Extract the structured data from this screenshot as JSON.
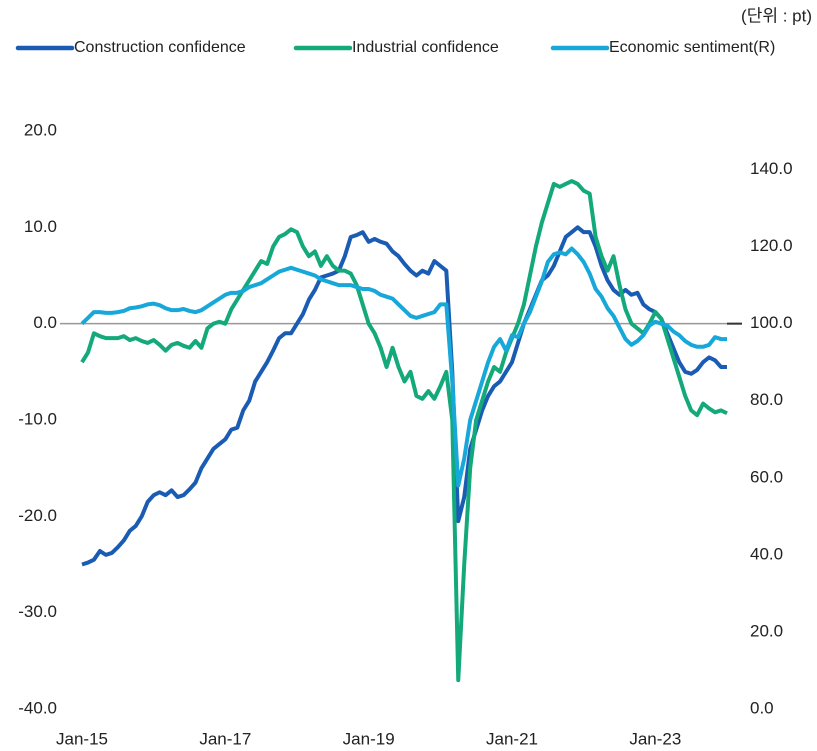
{
  "chart_data": {
    "type": "line",
    "unit_label": "(단위 : pt)",
    "categories": [
      "Jan-15",
      null,
      null,
      null,
      null,
      null,
      null,
      null,
      null,
      null,
      null,
      null,
      null,
      null,
      null,
      null,
      null,
      null,
      null,
      null,
      null,
      null,
      null,
      null,
      "Jan-17",
      null,
      null,
      null,
      null,
      null,
      null,
      null,
      null,
      null,
      null,
      null,
      null,
      null,
      null,
      null,
      null,
      null,
      null,
      null,
      null,
      null,
      null,
      null,
      "Jan-19",
      null,
      null,
      null,
      null,
      null,
      null,
      null,
      null,
      null,
      null,
      null,
      null,
      null,
      null,
      null,
      null,
      null,
      null,
      null,
      null,
      null,
      null,
      null,
      "Jan-21",
      null,
      null,
      null,
      null,
      null,
      null,
      null,
      null,
      null,
      null,
      null,
      null,
      null,
      null,
      null,
      null,
      null,
      null,
      null,
      null,
      null,
      null,
      null,
      "Jan-23",
      null,
      null,
      null,
      null,
      null,
      null,
      null,
      null,
      null,
      null,
      null,
      null
    ],
    "series": [
      {
        "name": "Construction confidence",
        "color": "#1a5cb4",
        "values": [
          -25,
          -24.8,
          -24.5,
          -23.6,
          -24,
          -23.8,
          -23.2,
          -22.5,
          -21.5,
          -21,
          -20,
          -18.5,
          -17.8,
          -17.5,
          -17.8,
          -17.3,
          -18,
          -17.8,
          -17.2,
          -16.5,
          -15,
          -14,
          -13,
          -12.5,
          -12,
          -11,
          -10.8,
          -9,
          -8,
          -6,
          -5,
          -4,
          -2.8,
          -1.5,
          -1,
          -1,
          0,
          1,
          2.5,
          3.5,
          4.8,
          5,
          5.2,
          5.5,
          7,
          9,
          9.2,
          9.5,
          8.5,
          8.8,
          8.5,
          8.3,
          7.5,
          7,
          6.2,
          5.5,
          5,
          5.5,
          5.2,
          6.5,
          6,
          5.5,
          -5,
          -20.5,
          -18,
          -13,
          -11,
          -9,
          -7.5,
          -6.5,
          -6,
          -5,
          -4,
          -2,
          0,
          1.5,
          3,
          4.5,
          5,
          6,
          7.5,
          9,
          9.5,
          10,
          9.5,
          9.5,
          8,
          6,
          4.5,
          3.5,
          3,
          3.5,
          3,
          3.2,
          2,
          1.5,
          1.2,
          0.5,
          -1,
          -2.5,
          -4,
          -5,
          -5.2,
          -4.8,
          -4,
          -3.5,
          -3.8,
          -4.5,
          -4.5
        ]
      },
      {
        "name": "Industrial confidence",
        "color": "#13a97a",
        "values": [
          -4,
          -3,
          -1,
          -1.3,
          -1.5,
          -1.5,
          -1.5,
          -1.3,
          -1.7,
          -1.5,
          -1.8,
          -2,
          -1.7,
          -2.2,
          -2.8,
          -2.2,
          -2,
          -2.3,
          -2.5,
          -1.8,
          -2.5,
          -0.5,
          0,
          0.2,
          0,
          1.5,
          2.5,
          3.5,
          4.5,
          5.5,
          6.5,
          6.2,
          8,
          9,
          9.3,
          9.8,
          9.5,
          8,
          7,
          7.5,
          6,
          7,
          6,
          5.5,
          5.5,
          5.2,
          4,
          2,
          0,
          -1,
          -2.5,
          -4.5,
          -2.5,
          -4.5,
          -6,
          -5,
          -7.5,
          -7.8,
          -7,
          -7.8,
          -6.5,
          -5,
          -10,
          -37,
          -25,
          -15,
          -10,
          -8,
          -6,
          -4.5,
          -5,
          -3,
          -1.5,
          0,
          2,
          5,
          8,
          10.5,
          12.5,
          14.5,
          14.2,
          14.5,
          14.8,
          14.5,
          13.8,
          13.5,
          9,
          7,
          5.5,
          7,
          4,
          1.5,
          0,
          -0.5,
          -1,
          0,
          1.2,
          0.5,
          -1.5,
          -3.5,
          -5.5,
          -7.5,
          -9,
          -9.5,
          -8.3,
          -8.8,
          -9.2,
          -9,
          -9.3
        ]
      },
      {
        "name": "Economic sentiment(R)",
        "color": "#17a7d9",
        "axis": "y2",
        "values": [
          100,
          101.5,
          103,
          103,
          102.8,
          102.8,
          103,
          103.3,
          104,
          104.2,
          104.5,
          105,
          105.2,
          104.8,
          104,
          103.5,
          103.5,
          103.8,
          103.3,
          103,
          103.5,
          104.5,
          105.5,
          106.5,
          107.5,
          108,
          108,
          108.5,
          109.5,
          110,
          110.5,
          111.5,
          112.5,
          113.5,
          114,
          114.5,
          114,
          113.5,
          113,
          112.5,
          111.5,
          111,
          110.5,
          110,
          110,
          110,
          109.5,
          109,
          109,
          108.5,
          107.5,
          107,
          106.5,
          105,
          103.5,
          102,
          101.5,
          102,
          102.5,
          103,
          105,
          105,
          85,
          58,
          65,
          75,
          80,
          85,
          90,
          94,
          96,
          93,
          97,
          96.5,
          100,
          103,
          107,
          111,
          116,
          118,
          118.5,
          118,
          119.5,
          118,
          116,
          113,
          109,
          107,
          104,
          102,
          99,
          96,
          94.5,
          95.5,
          97,
          99.5,
          100.5,
          100,
          99.5,
          98,
          97,
          95.5,
          94.5,
          94,
          94,
          94.5,
          96.5,
          96,
          96
        ]
      }
    ],
    "ylim": [
      -40,
      20
    ],
    "yticks": [
      {
        "value": -40,
        "label": "-40.0"
      },
      {
        "value": -30,
        "label": "-30.0"
      },
      {
        "value": -20,
        "label": "-20.0"
      },
      {
        "value": -10,
        "label": "-10.0"
      },
      {
        "value": 0,
        "label": "0.0"
      },
      {
        "value": 10,
        "label": "10.0"
      },
      {
        "value": 20,
        "label": "20.0"
      }
    ],
    "y2lim": [
      0,
      150
    ],
    "y2ticks": [
      {
        "value": 0,
        "label": "0.0"
      },
      {
        "value": 20,
        "label": "20.0"
      },
      {
        "value": 40,
        "label": "40.0"
      },
      {
        "value": 60,
        "label": "60.0"
      },
      {
        "value": 80,
        "label": "80.0"
      },
      {
        "value": 100,
        "label": "100.0"
      },
      {
        "value": 120,
        "label": "120.0"
      },
      {
        "value": 140,
        "label": "140.0"
      }
    ],
    "grid": false,
    "legend": "top"
  }
}
